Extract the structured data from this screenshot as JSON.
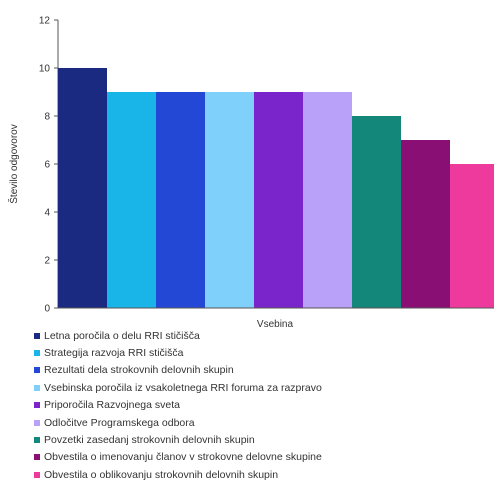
{
  "chart_data": {
    "type": "bar",
    "title": "",
    "xlabel": "Vsebina",
    "ylabel": "Število odgovorov",
    "ylim": [
      0,
      12
    ],
    "yticks": [
      0,
      2,
      4,
      6,
      8,
      10,
      12
    ],
    "grid": false,
    "legend_position": "bottom",
    "series": [
      {
        "name": "Letna poročila o delu RRI stičišča",
        "value": 10,
        "color": "#1a2a80"
      },
      {
        "name": "Strategija razvoja RRI stičišča",
        "value": 9,
        "color": "#19b4e8"
      },
      {
        "name": "Rezultati dela strokovnih delovnih skupin",
        "value": 9,
        "color": "#2348d6"
      },
      {
        "name": "Vsebinska poročila iz vsakoletnega RRI foruma za razpravo",
        "value": 9,
        "color": "#7fd0fb"
      },
      {
        "name": "Priporočila Razvojnega sveta",
        "value": 9,
        "color": "#7a24cc"
      },
      {
        "name": "Odločitve Programskega odbora",
        "value": 9,
        "color": "#b9a0f8"
      },
      {
        "name": "Povzetki zasedanj strokovnih delovnih skupin",
        "value": 8,
        "color": "#13887a"
      },
      {
        "name": "Obvestila o imenovanju članov v strokovne delovne skupine",
        "value": 7,
        "color": "#8a0f74"
      },
      {
        "name": "Obvestila o oblikovanju strokovnih delovnih skupin",
        "value": 6,
        "color": "#ee3a9c"
      }
    ]
  }
}
